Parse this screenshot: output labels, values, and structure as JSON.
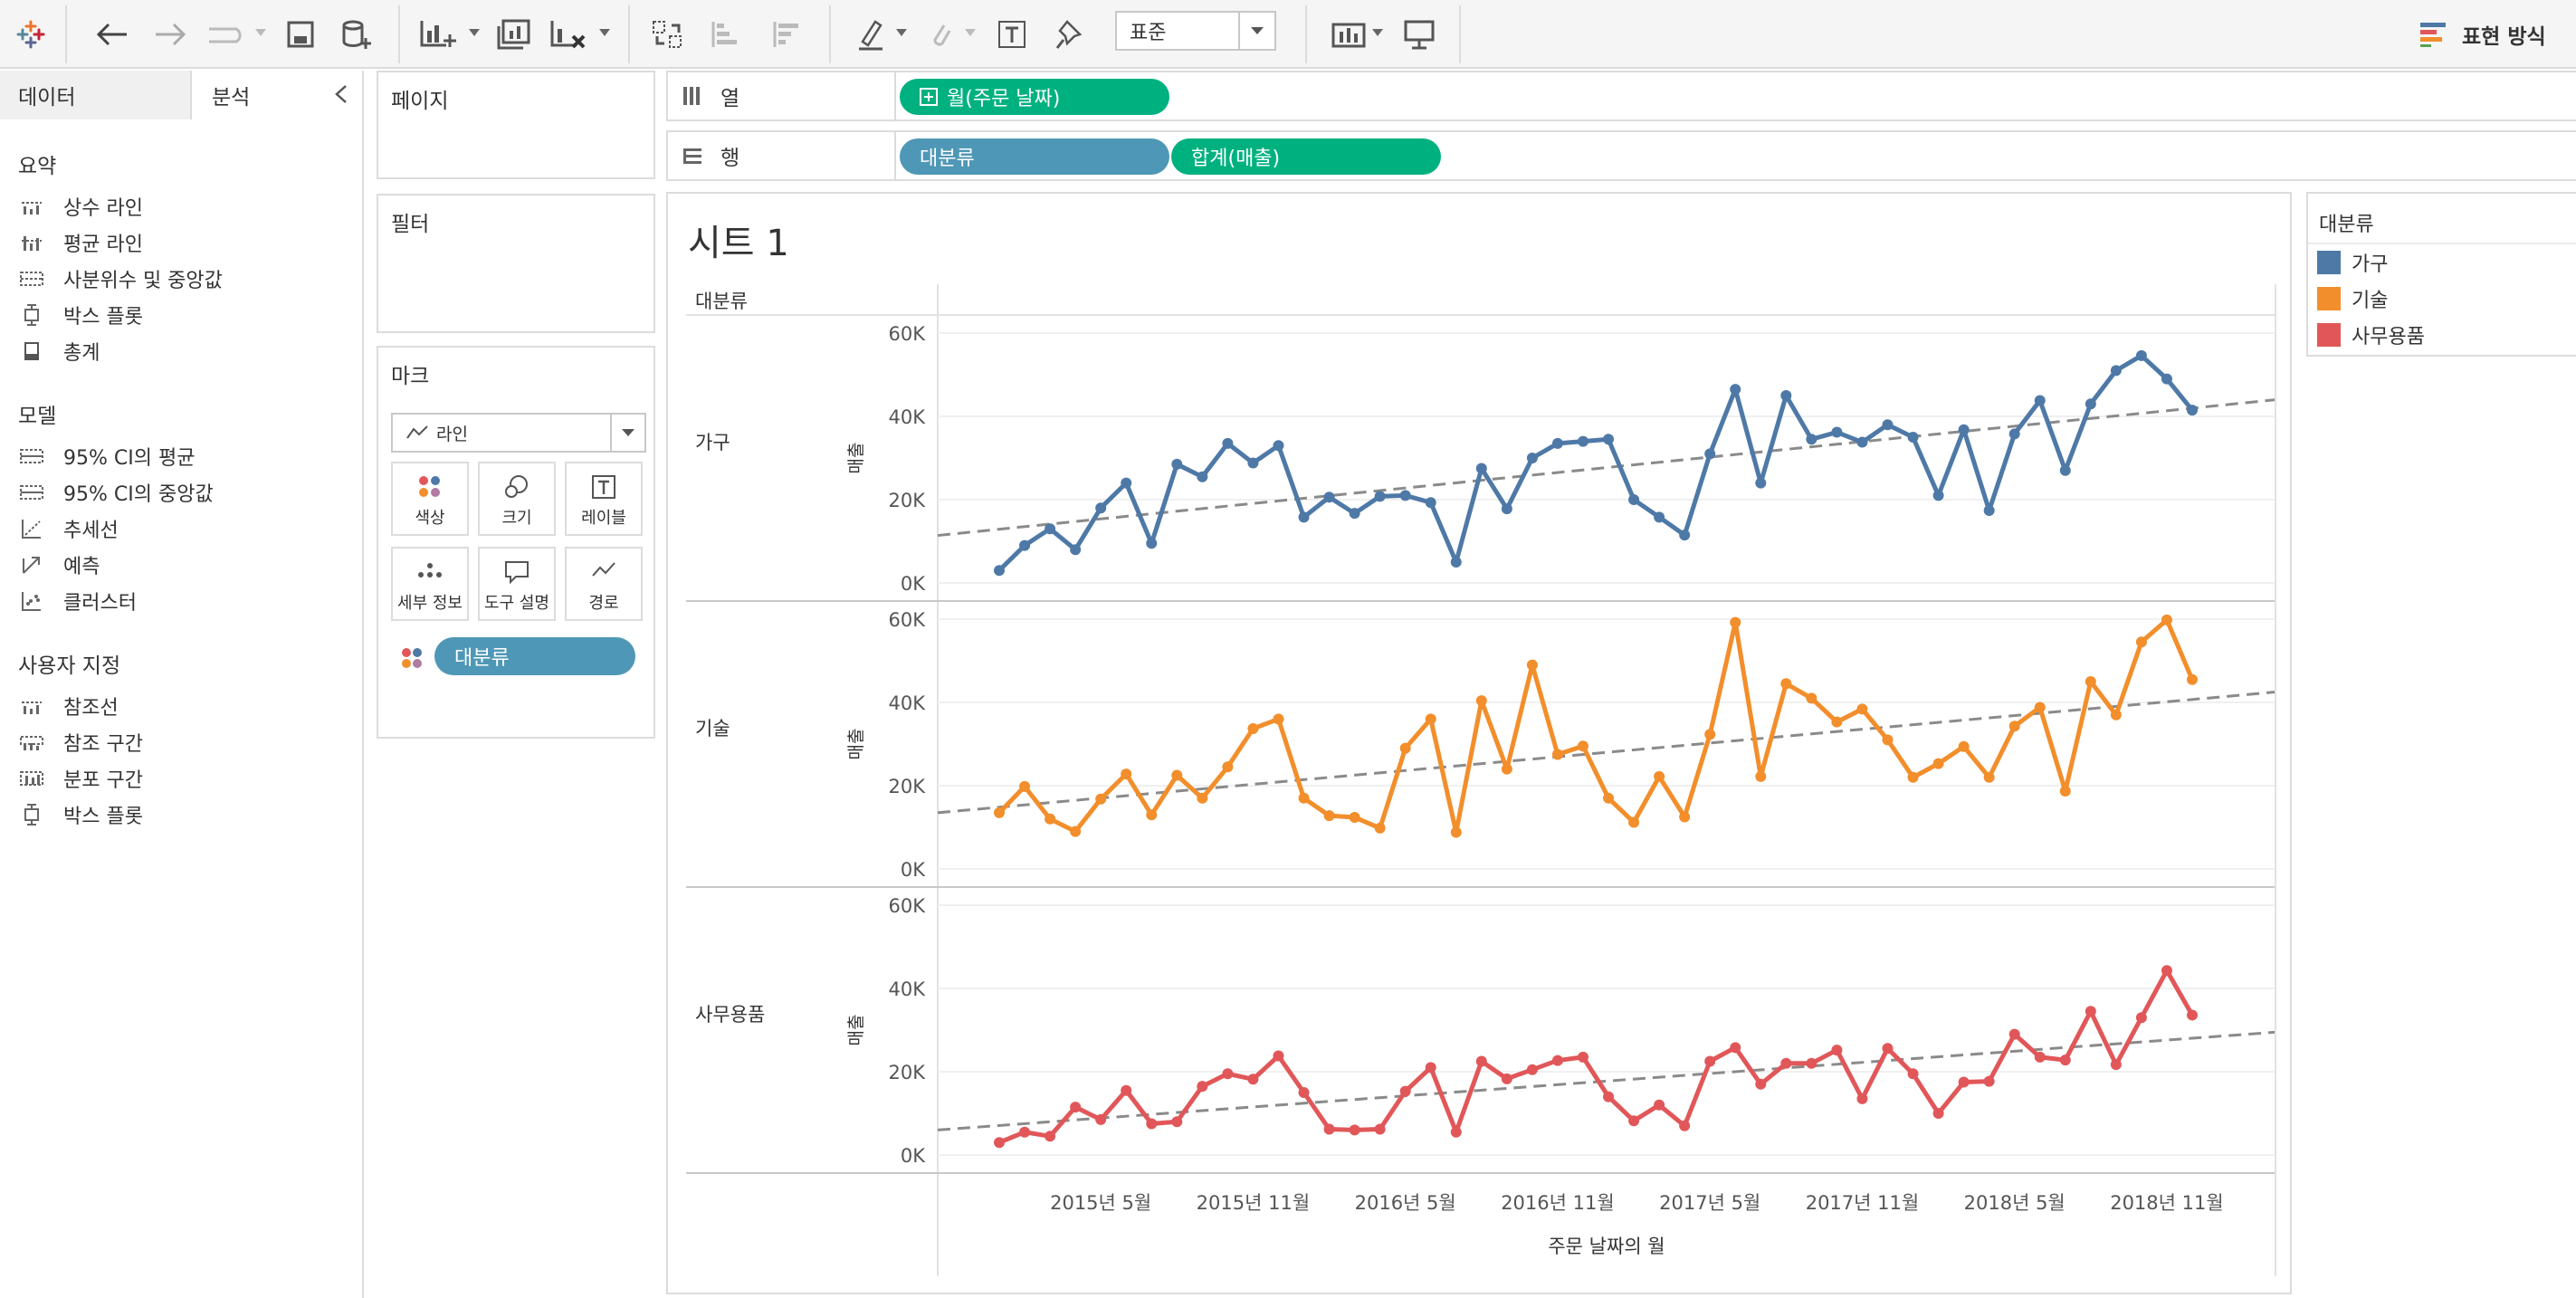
{
  "toolbar": {
    "fit_select": "표준",
    "show_me": "표현 방식"
  },
  "left_panel": {
    "tabs": {
      "data": "데이터",
      "analysis": "분석"
    },
    "summary_title": "요약",
    "summary_items": [
      "상수 라인",
      "평균 라인",
      "사분위수 및 중앙값",
      "박스 플롯",
      "총계"
    ],
    "model_title": "모델",
    "model_items": [
      "95% CI의 평균",
      "95% CI의 중앙값",
      "추세선",
      "예측",
      "클러스터"
    ],
    "custom_title": "사용자 지정",
    "custom_items": [
      "참조선",
      "참조 구간",
      "분포 구간",
      "박스 플롯"
    ]
  },
  "cards": {
    "pages": "페이지",
    "filters": "필터",
    "marks": "마크",
    "mark_type": "라인",
    "mark_buttons": [
      "색상",
      "크기",
      "레이블",
      "세부 정보",
      "도구 설명",
      "경로"
    ],
    "mark_pill": "대분류"
  },
  "shelves": {
    "columns_label": "열",
    "columns_pill": "월(주문 날짜)",
    "rows_label": "행",
    "rows_pills": [
      "대분류",
      "합계(매출)"
    ]
  },
  "view": {
    "title": "시트 1"
  },
  "legend": {
    "title": "대분류",
    "items": [
      {
        "label": "가구",
        "color": "#4e79a7"
      },
      {
        "label": "기술",
        "color": "#f28e2b"
      },
      {
        "label": "사무용품",
        "color": "#e15759"
      }
    ]
  },
  "chart_data": {
    "type": "line",
    "row_header": "대분류",
    "ylabel": "매출",
    "xlabel": "주문 날짜의 월",
    "ylim": [
      0,
      60000
    ],
    "y_ticks": [
      "0K",
      "20K",
      "40K",
      "60K"
    ],
    "x_ticks": [
      {
        "label": "2015년 5월",
        "index": 4
      },
      {
        "label": "2015년 11월",
        "index": 10
      },
      {
        "label": "2016년 5월",
        "index": 16
      },
      {
        "label": "2016년 11월",
        "index": 22
      },
      {
        "label": "2017년 5월",
        "index": 28
      },
      {
        "label": "2017년 11월",
        "index": 34
      },
      {
        "label": "2018년 5월",
        "index": 40
      },
      {
        "label": "2018년 11월",
        "index": 46
      }
    ],
    "x": [
      "2015-01",
      "2015-02",
      "2015-03",
      "2015-04",
      "2015-05",
      "2015-06",
      "2015-07",
      "2015-08",
      "2015-09",
      "2015-10",
      "2015-11",
      "2015-12",
      "2016-01",
      "2016-02",
      "2016-03",
      "2016-04",
      "2016-05",
      "2016-06",
      "2016-07",
      "2016-08",
      "2016-09",
      "2016-10",
      "2016-11",
      "2016-12",
      "2017-01",
      "2017-02",
      "2017-03",
      "2017-04",
      "2017-05",
      "2017-06",
      "2017-07",
      "2017-08",
      "2017-09",
      "2017-10",
      "2017-11",
      "2017-12",
      "2018-01",
      "2018-02",
      "2018-03",
      "2018-04",
      "2018-05",
      "2018-06",
      "2018-07",
      "2018-08",
      "2018-09",
      "2018-10",
      "2018-11",
      "2018-12"
    ],
    "trend_line": true,
    "series": [
      {
        "name": "가구",
        "color": "#4e79a7",
        "values": [
          3000,
          9000,
          13000,
          8000,
          18000,
          24000,
          9500,
          28500,
          25500,
          33500,
          28800,
          33000,
          15800,
          20600,
          16700,
          20800,
          21000,
          19300,
          5000,
          27500,
          17800,
          30000,
          33500,
          34000,
          34500,
          20000,
          15800,
          11500,
          31000,
          46500,
          24000,
          45000,
          34500,
          36200,
          33800,
          38000,
          35000,
          21000,
          36800,
          17400,
          35800,
          43800,
          27000,
          43000,
          51000,
          54600,
          49000,
          41500
        ],
        "trend": [
          11400,
          44000
        ]
      },
      {
        "name": "기술",
        "color": "#f28e2b",
        "values": [
          13500,
          19800,
          12000,
          9000,
          16800,
          22800,
          13000,
          22500,
          17000,
          24500,
          33700,
          36000,
          17000,
          12800,
          12400,
          9800,
          29000,
          36000,
          8800,
          40400,
          24000,
          49000,
          27500,
          29500,
          17000,
          11200,
          22200,
          12500,
          32300,
          59200,
          22200,
          44500,
          41000,
          35300,
          38400,
          31000,
          22000,
          25300,
          29400,
          22000,
          34300,
          38800,
          18700,
          45000,
          37000,
          54500,
          59800,
          45500
        ],
        "trend": [
          13500,
          42500
        ]
      },
      {
        "name": "사무용품",
        "color": "#e15759",
        "values": [
          3000,
          5500,
          4500,
          11500,
          8500,
          15500,
          7500,
          8000,
          16500,
          19500,
          18200,
          23800,
          15000,
          6200,
          6000,
          6200,
          15300,
          21000,
          5500,
          22500,
          18300,
          20500,
          22700,
          23500,
          14000,
          8200,
          12000,
          7000,
          22500,
          25800,
          17000,
          22000,
          22000,
          25200,
          13500,
          25600,
          19500,
          10000,
          17500,
          17700,
          29000,
          23500,
          22800,
          34500,
          21700,
          33000,
          44300,
          33600
        ],
        "trend": [
          6000,
          29500
        ]
      }
    ]
  }
}
